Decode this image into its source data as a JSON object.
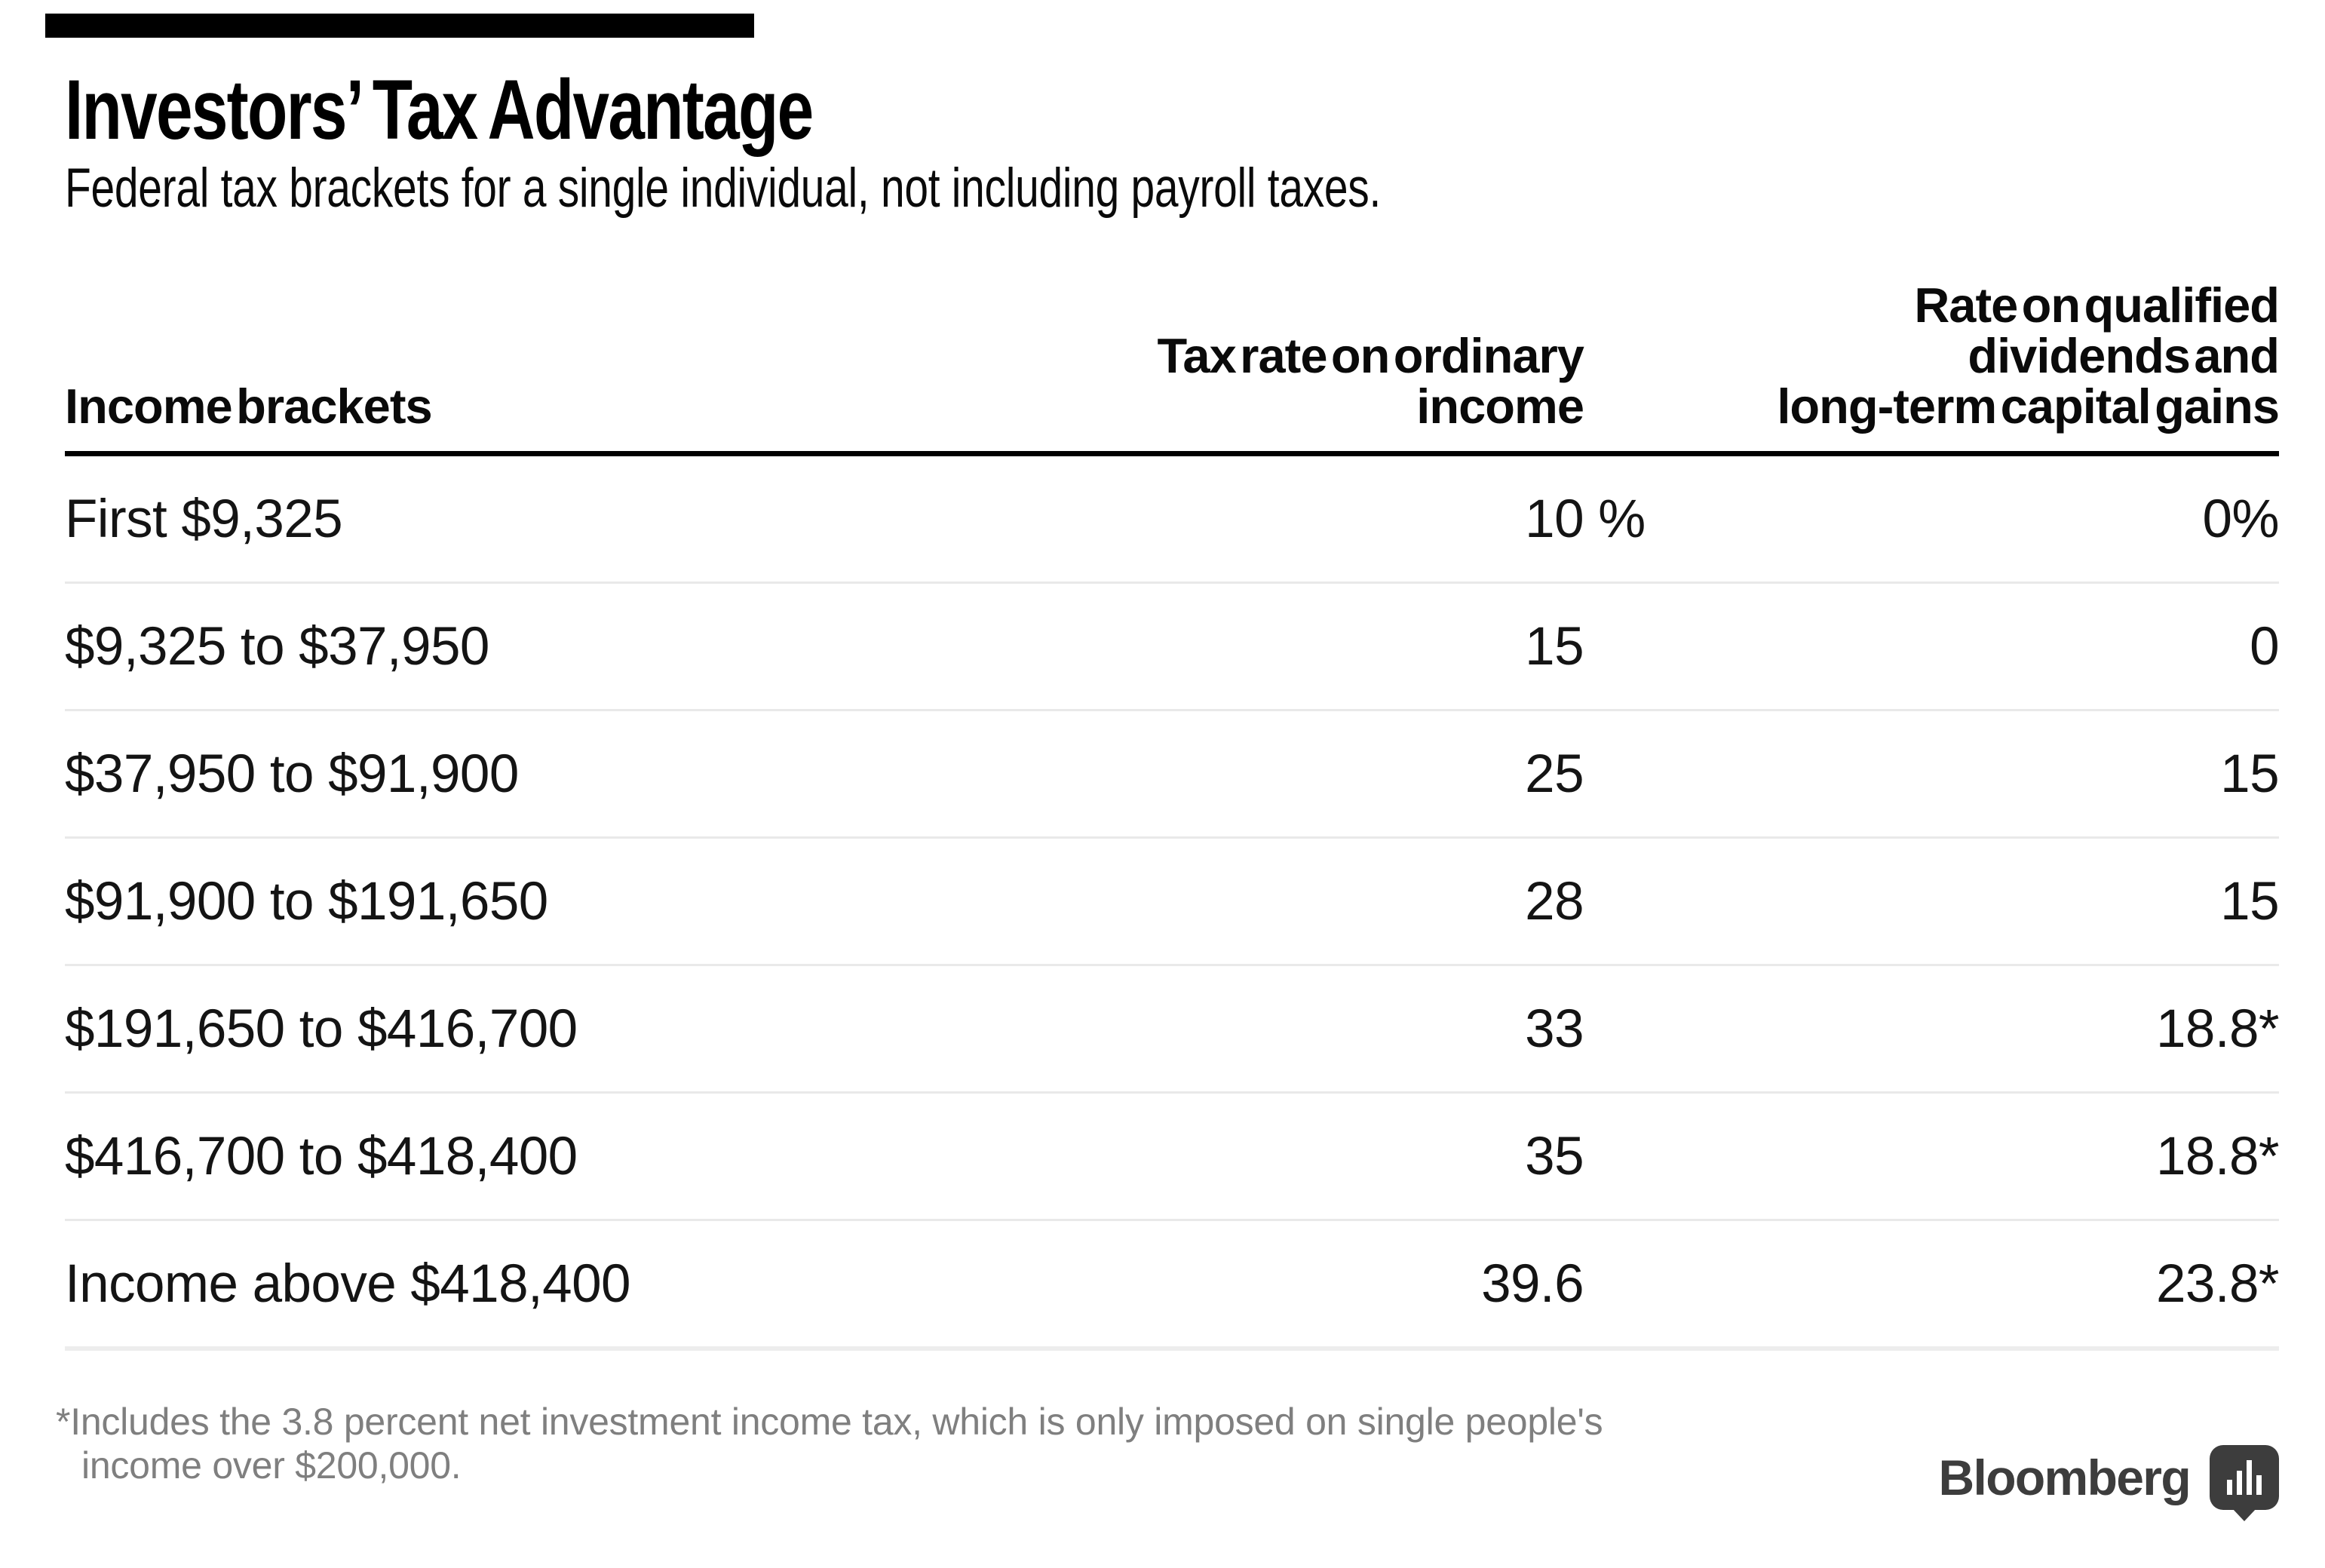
{
  "brand": {
    "logo_text": "Bloomberg",
    "logo_icon": "bar-chart-speech-bubble-icon",
    "logo_color": "#3d3d3d",
    "top_rule_color": "#000000"
  },
  "header": {
    "title": "Investors’ Tax Advantage",
    "subtitle": "Federal tax brackets for a single individual, not including payroll taxes."
  },
  "table": {
    "columns": [
      {
        "id": "brackets",
        "align": "left",
        "lines": [
          "Income brackets"
        ]
      },
      {
        "id": "ordinary",
        "align": "right",
        "lines": [
          "Tax rate on ordinary",
          "income"
        ]
      },
      {
        "id": "qualified",
        "align": "right",
        "lines": [
          "Rate on qualified",
          "dividends and",
          "long-term capital gains"
        ]
      }
    ],
    "rows": [
      {
        "bracket": "First $9,325",
        "ordinary": "10",
        "ordinary_suffix": " %",
        "qualified": "0%"
      },
      {
        "bracket": "$9,325 to $37,950",
        "ordinary": "15",
        "ordinary_suffix": "",
        "qualified": "0"
      },
      {
        "bracket": "$37,950 to $91,900",
        "ordinary": "25",
        "ordinary_suffix": "",
        "qualified": "15"
      },
      {
        "bracket": "$91,900 to $191,650",
        "ordinary": "28",
        "ordinary_suffix": "",
        "qualified": "15"
      },
      {
        "bracket": "$191,650 to $416,700",
        "ordinary": "33",
        "ordinary_suffix": "",
        "qualified": "18.8*"
      },
      {
        "bracket": "$416,700 to $418,400",
        "ordinary": "35",
        "ordinary_suffix": "",
        "qualified": "18.8*"
      },
      {
        "bracket": "Income above $418,400",
        "ordinary": "39.6",
        "ordinary_suffix": "",
        "qualified": "23.8*"
      }
    ]
  },
  "footnote": {
    "line1": "*Includes the 3.8 percent net investment income tax, which is only imposed on single people's",
    "line2": "income over $200,000."
  },
  "colors": {
    "background": "#ffffff",
    "text_black": "#0a0a0a",
    "header_rule": "#000000",
    "row_divider": "#e9e9e9",
    "bottom_divider": "#ededed",
    "footnote_gray": "#7f7f7f",
    "logo_gray": "#3d3d3d"
  },
  "chart_data": {
    "type": "table",
    "title": "Investors’ Tax Advantage",
    "subtitle": "Federal tax brackets for a single individual, not including payroll taxes.",
    "columns": [
      "Income brackets",
      "Tax rate on ordinary income",
      "Rate on qualified dividends and long-term capital gains"
    ],
    "rows": [
      [
        "First $9,325",
        "10 %",
        "0%"
      ],
      [
        "$9,325 to $37,950",
        "15",
        "0"
      ],
      [
        "$37,950 to $91,900",
        "25",
        "15"
      ],
      [
        "$91,900 to $191,650",
        "28",
        "15"
      ],
      [
        "$191,650 to $416,700",
        "33",
        "18.8*"
      ],
      [
        "$416,700 to $418,400",
        "35",
        "18.8*"
      ],
      [
        "Income above $418,400",
        "39.6",
        "23.8*"
      ]
    ],
    "ordinary_income_rates_pct": [
      10,
      15,
      25,
      28,
      33,
      35,
      39.6
    ],
    "qualified_dividend_rates_pct": [
      0,
      0,
      15,
      15,
      18.8,
      18.8,
      23.8
    ],
    "footnote": "*Includes the 3.8 percent net investment income tax, which is only imposed on single people's income over $200,000.",
    "brand": "Bloomberg",
    "layout": {
      "grid": "horizontal row dividers only",
      "value_alignment": "right"
    }
  }
}
